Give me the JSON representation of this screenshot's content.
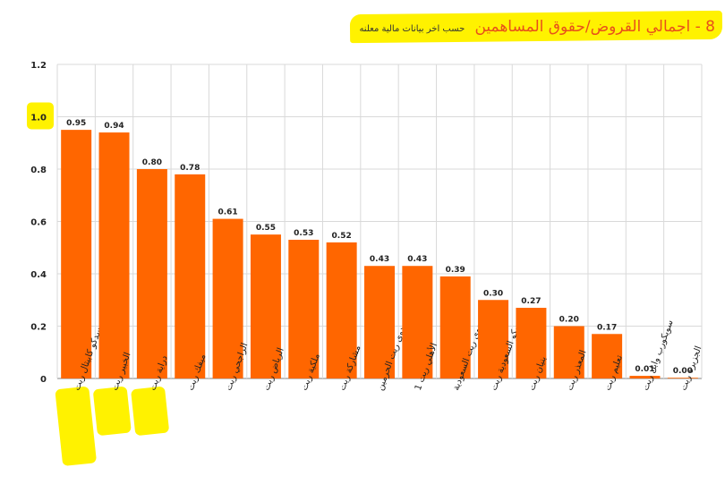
{
  "title": {
    "main": "8 - اجمالي القروض/حقوق المساهمين",
    "subtitle": "حسب اخر بيانات مالية معلنه"
  },
  "colors": {
    "bar": "#ff6600",
    "highlight": "#fff200",
    "title": "#e8501a",
    "grid": "#d9d9d9",
    "axis": "#808080"
  },
  "chart_data": {
    "type": "bar",
    "title": "8 - اجمالي القروض/حقوق المساهمين",
    "categories": [
      "سدكو كابيتال ريت",
      "الخبير ريت",
      "دراية ريت",
      "ميفك ريت",
      "الراجحي ريت",
      "الرياض ريت",
      "ملكية ريت",
      "مشاركة ريت",
      "جدوى ريت الحرمين",
      "الأهلي ريت 1",
      "جدوى ريت السعودية",
      "سيكو السعودية ريت",
      "بنيان ريت",
      "المعذر ريت",
      "تعليم ريت",
      "سويكورب وابل ريت",
      "الجزيرة ريت"
    ],
    "values": [
      0.95,
      0.94,
      0.8,
      0.78,
      0.61,
      0.55,
      0.53,
      0.52,
      0.43,
      0.43,
      0.39,
      0.3,
      0.27,
      0.2,
      0.17,
      0.01,
      0.0
    ],
    "value_labels": [
      "0.95",
      "0.94",
      "0.80",
      "0.78",
      "0.61",
      "0.55",
      "0.53",
      "0.52",
      "0.43",
      "0.43",
      "0.39",
      "0.30",
      "0.27",
      "0.20",
      "0.17",
      "0.01",
      "0.00"
    ],
    "highlighted_categories": [
      0,
      1,
      2
    ],
    "highlighted_y_ticks": [
      "1.0"
    ],
    "ylim": [
      0,
      1.2
    ],
    "y_ticks": [
      "0",
      "0.2",
      "0.4",
      "0.6",
      "0.8",
      "1.0",
      "1.2"
    ],
    "grid": true,
    "xlabel": "",
    "ylabel": ""
  }
}
